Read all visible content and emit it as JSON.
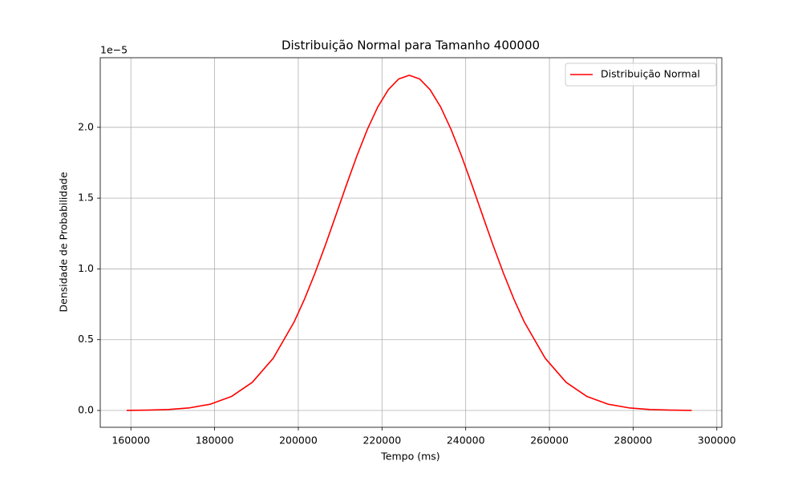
{
  "chart_data": {
    "type": "line",
    "title": "Distribuição Normal para Tamanho 400000",
    "x_label": "Tempo (ms)",
    "y_label": "Densidade de Probabilidade",
    "y_offset_label": "1e−5",
    "x": [
      159000,
      164000,
      169000,
      174000,
      179000,
      184000,
      189000,
      194000,
      199000,
      201500,
      204000,
      206500,
      209000,
      211500,
      214000,
      216500,
      219000,
      221500,
      224000,
      226500,
      229000,
      231500,
      234000,
      236500,
      239000,
      241500,
      244000,
      246500,
      249000,
      251500,
      254000,
      259000,
      264000,
      269000,
      274000,
      279000,
      284000,
      289000,
      294000
    ],
    "series": [
      {
        "name": "Distribuição Normal",
        "color": "#ff0000",
        "values": [
          0.00078,
          0.0024,
          0.007,
          0.0185,
          0.0446,
          0.0983,
          0.1988,
          0.3687,
          0.625,
          0.7875,
          0.9712,
          1.1705,
          1.3808,
          1.5931,
          1.798,
          1.9853,
          2.1443,
          2.2656,
          2.3418,
          2.3676,
          2.3418,
          2.2656,
          2.1443,
          1.9853,
          1.798,
          1.5931,
          1.3808,
          1.1705,
          0.9712,
          0.7875,
          0.625,
          0.3687,
          0.1988,
          0.0983,
          0.0446,
          0.0185,
          0.007,
          0.0024,
          0.00078
        ]
      }
    ],
    "xlim": [
      152680,
      301190
    ],
    "ylim": [
      -0.1187,
      2.4917
    ],
    "xticks": [
      160000,
      180000,
      200000,
      220000,
      240000,
      260000,
      280000,
      300000
    ],
    "yticks": [
      {
        "value": 0,
        "label": "0.0"
      },
      0.5,
      {
        "value": 1,
        "label": "1.0"
      },
      1.5,
      {
        "value": 2,
        "label": "2.0"
      }
    ],
    "grid": true,
    "legend": "upper right"
  }
}
